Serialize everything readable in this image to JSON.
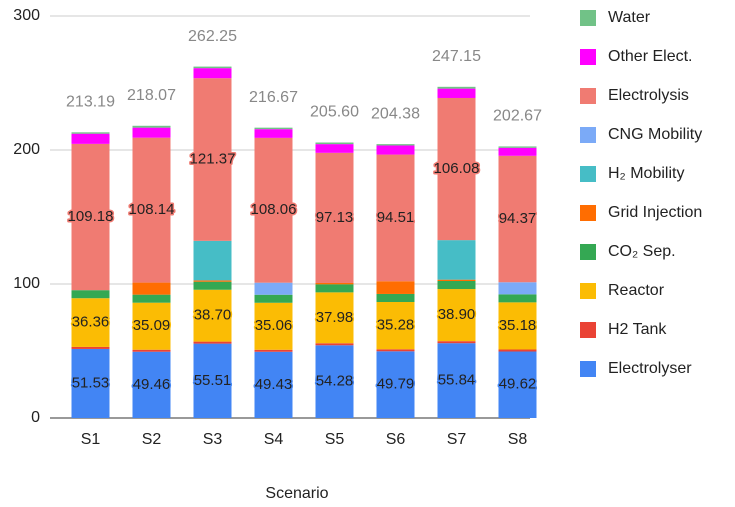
{
  "chart_data": {
    "type": "stacked_bar",
    "x_label": "Scenario",
    "categories": [
      "S1",
      "S2",
      "S3",
      "S4",
      "S5",
      "S6",
      "S7",
      "S8"
    ],
    "series": [
      {
        "name": "Electrolyser",
        "color": "#4285f4",
        "values": [
          51.53,
          49.46,
          55.51,
          49.43,
          54.28,
          49.79,
          55.84,
          49.62
        ],
        "value_labels": [
          "51.53",
          "49.46",
          "55.51",
          "49.43",
          "54.28",
          "49.79",
          "55.84",
          "49.62"
        ]
      },
      {
        "name": "H2 Tank",
        "color": "#ea4335",
        "values": [
          1.5,
          1.5,
          1.5,
          1.5,
          1.5,
          1.5,
          1.5,
          1.5
        ]
      },
      {
        "name": "Reactor",
        "color": "#fbbc04",
        "values": [
          36.36,
          35.09,
          38.7,
          35.06,
          37.98,
          35.28,
          38.9,
          35.18
        ],
        "value_labels": [
          "36.36",
          "35.09",
          "38.70",
          "35.06",
          "37.98",
          "35.28",
          "38.90",
          "35.18"
        ]
      },
      {
        "name": "CO₂ Sep.",
        "color": "#34a853",
        "values": [
          6,
          6,
          6,
          6,
          6,
          6,
          6,
          6
        ]
      },
      {
        "name": "Grid Injection",
        "color": "#ff6d01",
        "values": [
          0,
          9,
          1,
          0,
          1,
          9.5,
          1,
          0
        ]
      },
      {
        "name": "H₂ Mobility",
        "color": "#46bdc6",
        "values": [
          0,
          0,
          29.5,
          0,
          0,
          0,
          29.5,
          0
        ]
      },
      {
        "name": "CNG Mobility",
        "color": "#7baaf7",
        "values": [
          0,
          0,
          0,
          9,
          0,
          0,
          0,
          9
        ]
      },
      {
        "name": "Electrolysis",
        "color": "#f07b72",
        "values": [
          109.18,
          108.14,
          121.37,
          108.06,
          97.13,
          94.51,
          106.08,
          94.37
        ],
        "value_labels": [
          "109.18",
          "108.14",
          "121.37",
          "108.06",
          "97.13",
          "94.51",
          "106.08",
          "94.37"
        ]
      },
      {
        "name": "Other Elect.",
        "color": "#ff00ff",
        "values": [
          7.6,
          7.5,
          7.5,
          6.5,
          6.5,
          6.8,
          7,
          6
        ]
      },
      {
        "name": "Water",
        "color": "#71c287",
        "values": [
          1.02,
          1.38,
          1.17,
          1.12,
          1.21,
          1,
          1.33,
          1
        ]
      }
    ],
    "totals": [
      213.19,
      218.07,
      262.25,
      216.67,
      205.6,
      204.38,
      247.15,
      202.67
    ],
    "total_labels": [
      "213.19",
      "218.07",
      "262.25",
      "216.67",
      "205.60",
      "204.38",
      "247.15",
      "202.67"
    ],
    "ylim": [
      0,
      300
    ],
    "yticks": [
      0,
      100,
      200,
      300
    ],
    "grid": true,
    "legend": "right"
  }
}
